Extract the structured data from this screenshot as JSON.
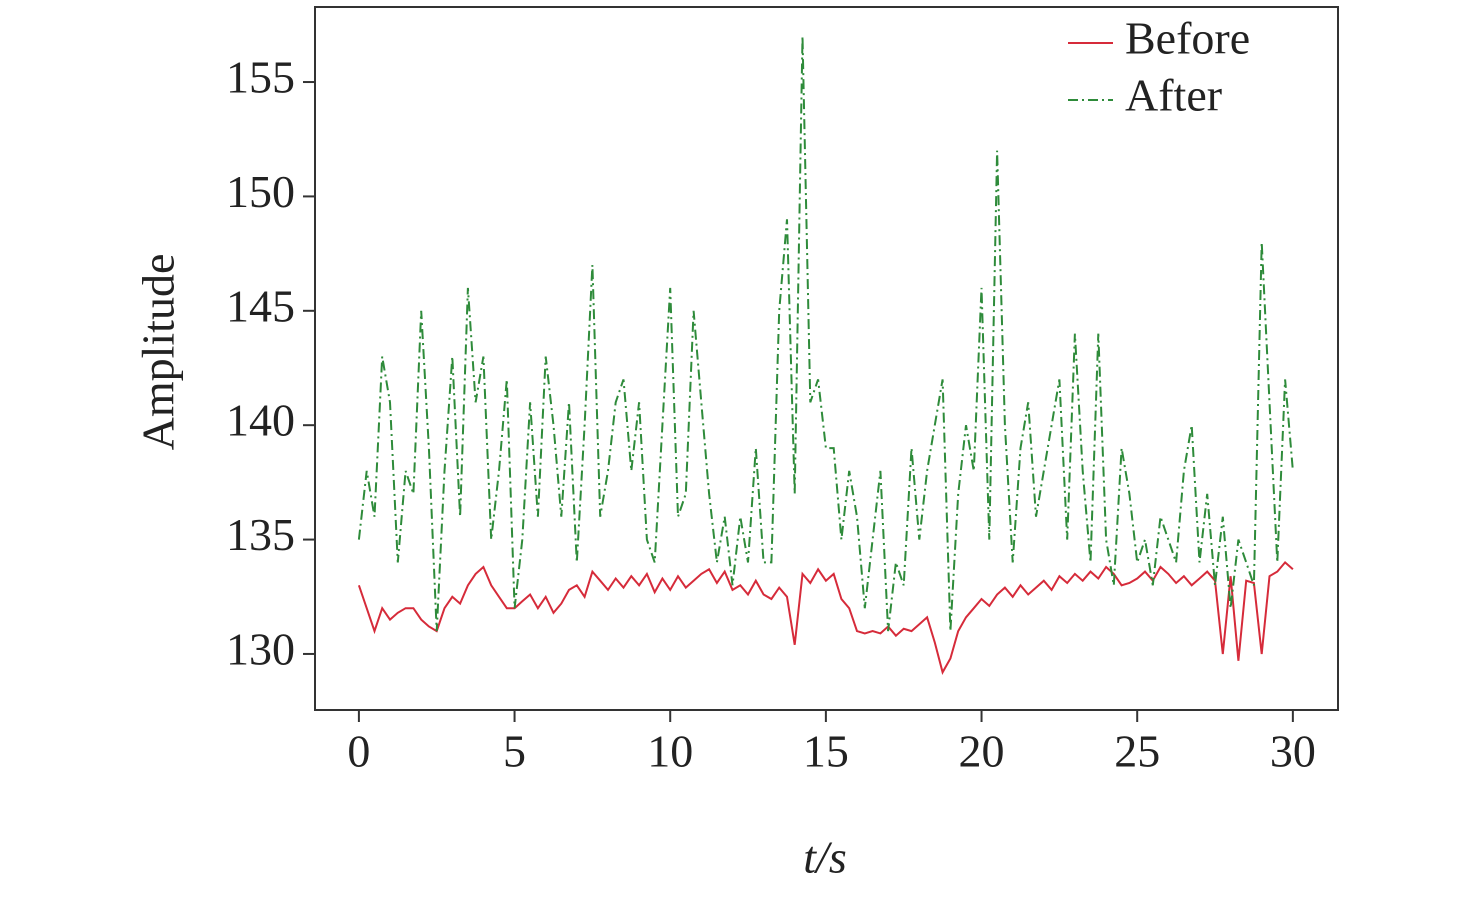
{
  "chart_data": {
    "type": "line",
    "xlabel": "t/s",
    "ylabel": "Amplitude",
    "x": [
      0,
      0.25,
      0.5,
      0.75,
      1,
      1.25,
      1.5,
      1.75,
      2,
      2.25,
      2.5,
      2.75,
      3,
      3.25,
      3.5,
      3.75,
      4,
      4.25,
      4.5,
      4.75,
      5,
      5.25,
      5.5,
      5.75,
      6,
      6.25,
      6.5,
      6.75,
      7,
      7.25,
      7.5,
      7.75,
      8,
      8.25,
      8.5,
      8.75,
      9,
      9.25,
      9.5,
      9.75,
      10,
      10.25,
      10.5,
      10.75,
      11,
      11.25,
      11.5,
      11.75,
      12,
      12.25,
      12.5,
      12.75,
      13,
      13.25,
      13.5,
      13.75,
      14,
      14.25,
      14.5,
      14.75,
      15,
      15.25,
      15.5,
      15.75,
      16,
      16.25,
      16.5,
      16.75,
      17,
      17.25,
      17.5,
      17.75,
      18,
      18.25,
      18.5,
      18.75,
      19,
      19.25,
      19.5,
      19.75,
      20,
      20.25,
      20.5,
      20.75,
      21,
      21.25,
      21.5,
      21.75,
      22,
      22.25,
      22.5,
      22.75,
      23,
      23.25,
      23.5,
      23.75,
      24,
      24.25,
      24.5,
      24.75,
      25,
      25.25,
      25.5,
      25.75,
      26,
      26.25,
      26.5,
      26.75,
      27,
      27.25,
      27.5,
      27.75,
      28,
      28.25,
      28.5,
      28.75,
      29,
      29.25,
      29.5,
      29.75,
      30
    ],
    "series": [
      {
        "name": "Before",
        "color": "#d62b3a",
        "dash": "solid",
        "values": [
          133,
          132,
          131,
          132,
          131.5,
          131.8,
          132,
          132,
          131.5,
          131.2,
          131,
          132,
          132.5,
          132.2,
          133,
          133.5,
          133.8,
          133,
          132.5,
          132,
          132,
          132.3,
          132.6,
          132,
          132.5,
          131.8,
          132.2,
          132.8,
          133,
          132.5,
          133.6,
          133.2,
          132.8,
          133.3,
          132.9,
          133.4,
          133,
          133.5,
          132.7,
          133.3,
          132.8,
          133.4,
          132.9,
          133.2,
          133.5,
          133.7,
          133.1,
          133.6,
          132.8,
          133,
          132.6,
          133.2,
          132.6,
          132.4,
          132.9,
          132.5,
          130.4,
          133.5,
          133.1,
          133.7,
          133.2,
          133.5,
          132.4,
          132,
          131,
          130.9,
          131,
          130.9,
          131.2,
          130.8,
          131.1,
          131,
          131.3,
          131.6,
          130.5,
          129.2,
          129.8,
          131,
          131.6,
          132,
          132.4,
          132.1,
          132.6,
          132.9,
          132.5,
          133,
          132.6,
          132.9,
          133.2,
          132.8,
          133.4,
          133.1,
          133.5,
          133.2,
          133.6,
          133.3,
          133.8,
          133.5,
          133,
          133.1,
          133.3,
          133.6,
          133.2,
          133.8,
          133.5,
          133.1,
          133.4,
          133,
          133.3,
          133.6,
          133.2,
          130,
          133.4,
          129.7,
          133.2,
          133.1,
          130,
          133.4,
          133.6,
          134,
          133.7
        ]
      },
      {
        "name": "After",
        "color": "#2e8b3a",
        "dash": "dashdot",
        "values": [
          135,
          138,
          136,
          143,
          141,
          134,
          138,
          137,
          145,
          139,
          131,
          138,
          143,
          136,
          146,
          141,
          143,
          135,
          138,
          142,
          132,
          135,
          141,
          136,
          143,
          140,
          136,
          141,
          134,
          140,
          147,
          136,
          138,
          141,
          142,
          138,
          141,
          135,
          134,
          140,
          146,
          136,
          137,
          145,
          141,
          137,
          134,
          136,
          133,
          136,
          134,
          139,
          134,
          134,
          145,
          149,
          137,
          157,
          141,
          142,
          139,
          139,
          135,
          138,
          136,
          132,
          135,
          138,
          131,
          134,
          133,
          139,
          135,
          138,
          140,
          142,
          131,
          137,
          140,
          138,
          146,
          135,
          152,
          140,
          134,
          139,
          141,
          136,
          138,
          140,
          142,
          135,
          144,
          138,
          134,
          144,
          135,
          133,
          139,
          137,
          134,
          135,
          133,
          136,
          135,
          134,
          138,
          140,
          134,
          137,
          133,
          136,
          132,
          135,
          134,
          133,
          148,
          141,
          134,
          142,
          138
        ]
      }
    ],
    "xlim": [
      -1.41,
      31.45
    ],
    "xticks": [
      0,
      5,
      10,
      15,
      20,
      25,
      30
    ],
    "ylim": [
      127.55,
      158.28
    ],
    "yticks": [
      130,
      135,
      140,
      145,
      150,
      155
    ],
    "grid": false,
    "legend": "upper right"
  }
}
